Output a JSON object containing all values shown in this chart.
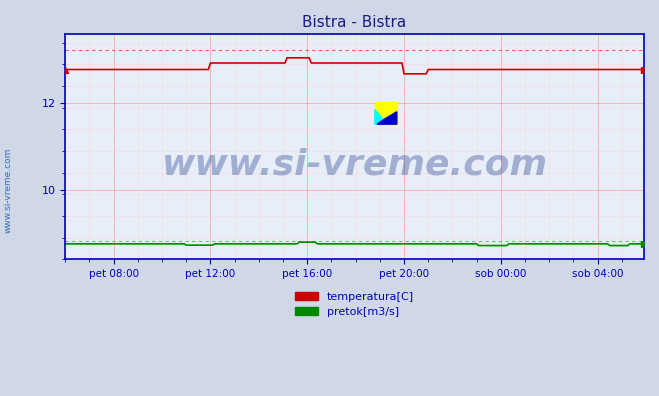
{
  "title": "Bistra - Bistra",
  "title_color": "#1a1a8c",
  "title_fontsize": 11,
  "background_color": "#d0d8e8",
  "plot_bg_color": "#e8eef8",
  "ylim": [
    8.4,
    13.6
  ],
  "xlim": [
    0,
    287
  ],
  "xtick_labels": [
    "pet 08:00",
    "pet 12:00",
    "pet 16:00",
    "pet 20:00",
    "sob 00:00",
    "sob 04:00"
  ],
  "xtick_positions": [
    24,
    72,
    120,
    168,
    216,
    264
  ],
  "ytick_labels": [
    "12",
    "10"
  ],
  "ytick_positions": [
    12.0,
    10.0
  ],
  "grid_major_color": "#ff9999",
  "grid_minor_color": "#ffcccc",
  "watermark_text": "www.si-vreme.com",
  "watermark_color": "#1a3a8c",
  "watermark_fontsize": 26,
  "side_label": "www.si-vreme.com",
  "side_label_color": "#1a5aaa",
  "axis_color": "#0000bb",
  "temp_color": "#cc0000",
  "temp_max_color": "#ff5555",
  "flow_color": "#008800",
  "flow_dashed_color": "#44dd44",
  "legend_temp_label": "temperatura[C]",
  "legend_flow_label": "pretok[m3/s]",
  "temp_base": 12.78,
  "temp_level2": 12.93,
  "temp_level3": 13.05,
  "temp_drop": 12.68,
  "temp_max_dashed": 13.22,
  "flow_base": 8.76,
  "flow_dip": 8.73,
  "flow_bump": 8.8,
  "flow_dashed": 8.83,
  "flow_end_dip": 8.72,
  "seg_x": [
    0,
    24,
    72,
    80,
    120,
    132,
    168,
    184,
    287
  ],
  "seg_temp": [
    12.78,
    12.78,
    12.93,
    13.05,
    13.05,
    12.93,
    12.68,
    12.78,
    12.78
  ]
}
